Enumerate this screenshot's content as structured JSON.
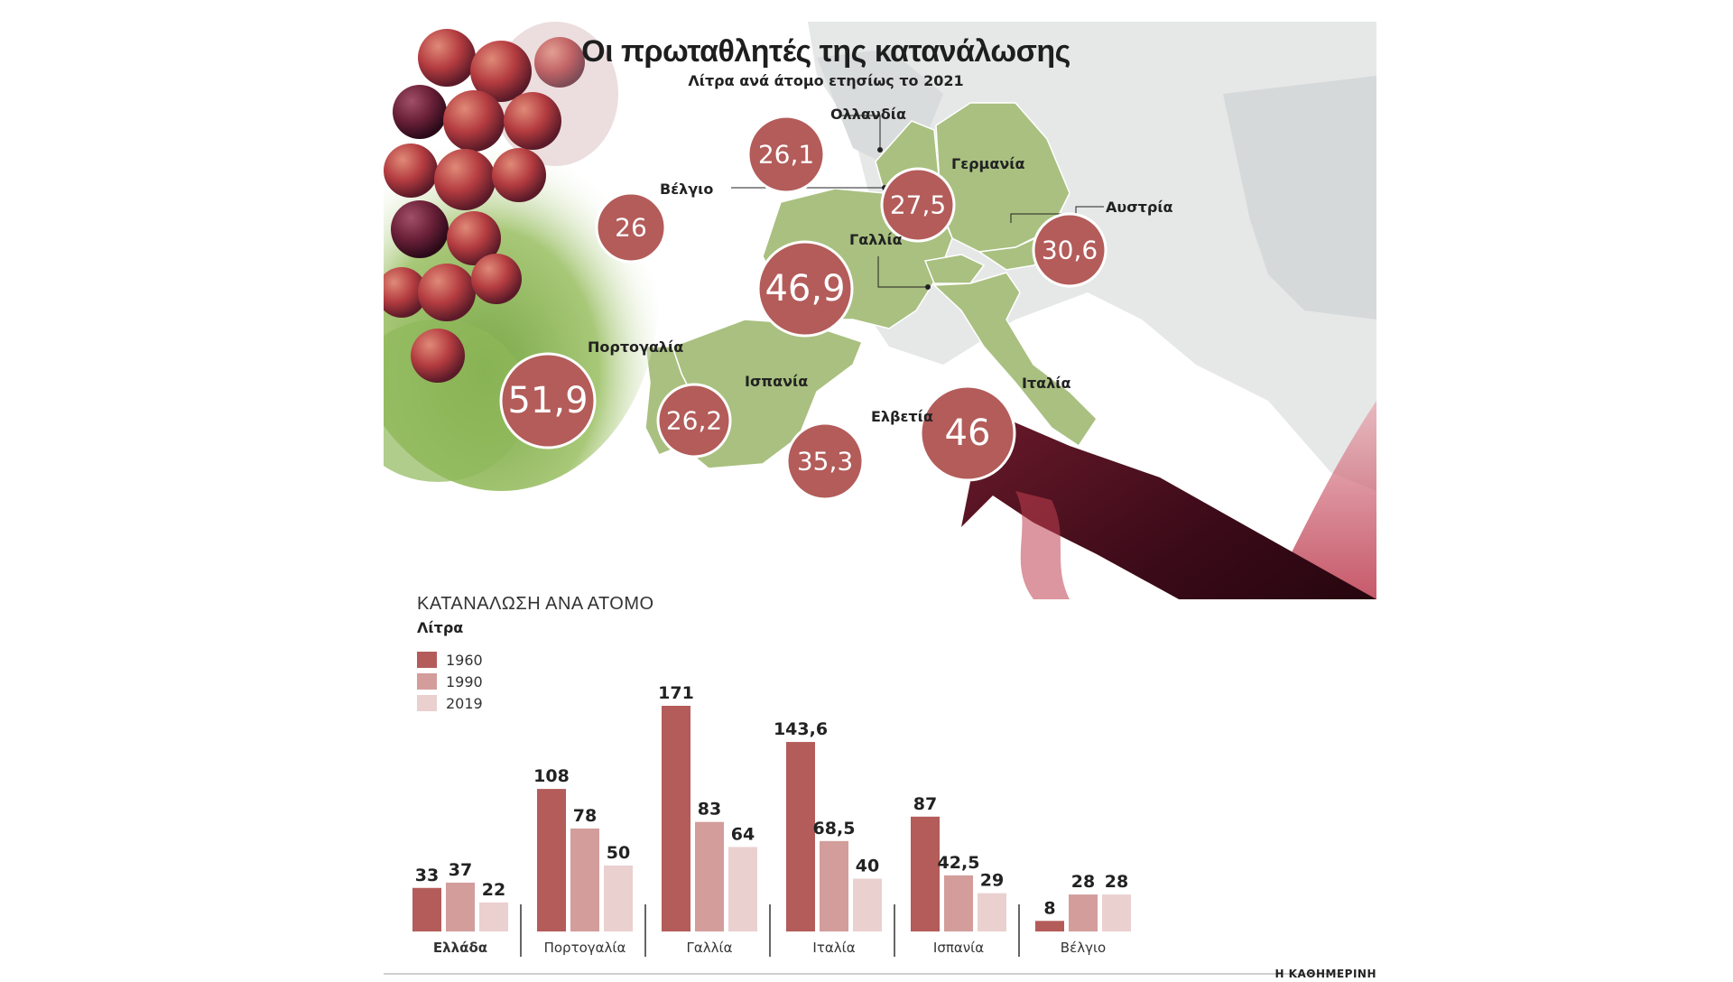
{
  "map": {
    "title": "Οι πρωταθλητές της κατανάλωσης",
    "subtitle": "Λίτρα ανά άτομο ετησίως το 2021",
    "countries": [
      {
        "name": "Ολλανδία",
        "value": "26,1"
      },
      {
        "name": "Βέλγιο",
        "value": "26"
      },
      {
        "name": "Γερμανία",
        "value": "27,5"
      },
      {
        "name": "Αυστρία",
        "value": "30,6"
      },
      {
        "name": "Γαλλία",
        "value": "46,9"
      },
      {
        "name": "Πορτογαλία",
        "value": "51,9"
      },
      {
        "name": "Ισπανία",
        "value": "26,2"
      },
      {
        "name": "Ελβετία",
        "value": "35,3"
      },
      {
        "name": "Ιταλία",
        "value": "46"
      }
    ]
  },
  "colors": {
    "bubble": "#b35c5a",
    "map_land": "#a9c080",
    "map_other": "#d9dcdc",
    "bar_1960": "#b35c5a",
    "bar_1990": "#d29d9b",
    "bar_2019": "#ead0cf"
  },
  "chart_data": {
    "type": "bar",
    "title": "ΚΑΤΑΝΑΛΩΣΗ ΑΝΑ ΑΤΟΜΟ",
    "ylabel": "Λίτρα",
    "categories": [
      "Ελλάδα",
      "Πορτογαλία",
      "Γαλλία",
      "Ιταλία",
      "Ισπανία",
      "Βέλγιο"
    ],
    "highlight_category": "Ελλάδα",
    "series": [
      {
        "name": "1960",
        "values": [
          33,
          108,
          171,
          143.6,
          87,
          8
        ],
        "labels": [
          "33",
          "108",
          "171",
          "143,6",
          "87",
          "8"
        ]
      },
      {
        "name": "1990",
        "values": [
          37,
          78,
          83,
          68.5,
          42.5,
          28
        ],
        "labels": [
          "37",
          "78",
          "83",
          "68,5",
          "42,5",
          "28"
        ]
      },
      {
        "name": "2019",
        "values": [
          22,
          50,
          64,
          40,
          29,
          28
        ],
        "labels": [
          "22",
          "50",
          "64",
          "40",
          "29",
          "28"
        ]
      }
    ],
    "ylim": [
      0,
      171
    ],
    "grid": false,
    "legend": "top-left"
  },
  "credit": "Η ΚΑΘΗΜΕΡΙΝΗ"
}
